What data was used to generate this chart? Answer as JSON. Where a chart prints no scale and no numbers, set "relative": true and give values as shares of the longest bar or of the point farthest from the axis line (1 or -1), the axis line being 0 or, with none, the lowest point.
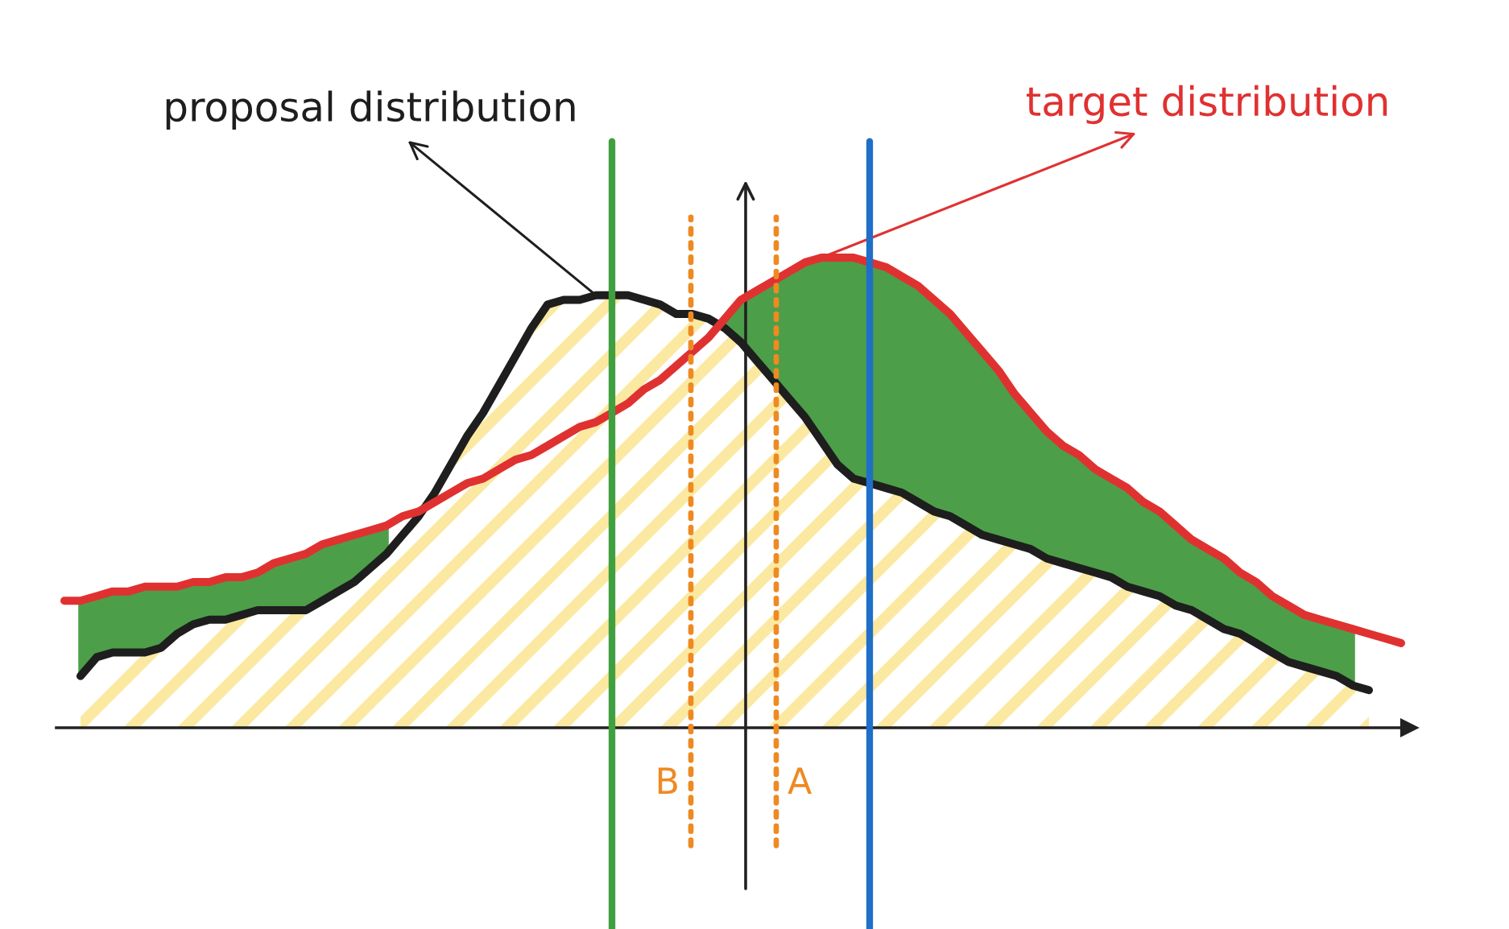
{
  "chart_data": {
    "type": "line",
    "relative": true,
    "categories": [
      null,
      null,
      null,
      null,
      null,
      null,
      null,
      null,
      null,
      null,
      null,
      null,
      null,
      null,
      null,
      null,
      null,
      null,
      null,
      null,
      null,
      null,
      null,
      null,
      null,
      null,
      null,
      null,
      null,
      null,
      null,
      null,
      null,
      null,
      null,
      null,
      null,
      null,
      null,
      null,
      null,
      null,
      null,
      null,
      null,
      null,
      null,
      null,
      null,
      null,
      null,
      null,
      null,
      null,
      null,
      null,
      null,
      null,
      null,
      null,
      null,
      null,
      null,
      null,
      null,
      null,
      null,
      null,
      null,
      null,
      null,
      null,
      null,
      null,
      null,
      null,
      null,
      null,
      null,
      null,
      null,
      null,
      null,
      null
    ],
    "series": [
      {
        "name": "proposal distribution",
        "type": "area",
        "color": "#1e1e1e",
        "values": [
          null,
          0.11,
          0.15,
          0.16,
          0.16,
          0.16,
          0.17,
          0.2,
          0.22,
          0.23,
          0.23,
          0.24,
          0.25,
          0.25,
          0.25,
          0.25,
          0.27,
          0.29,
          0.31,
          0.34,
          0.37,
          0.41,
          0.45,
          0.5,
          0.56,
          0.62,
          0.67,
          0.73,
          0.79,
          0.85,
          0.9,
          0.91,
          0.91,
          0.92,
          0.92,
          0.92,
          0.91,
          0.9,
          0.88,
          0.88,
          0.87,
          0.85,
          0.82,
          0.78,
          0.74,
          0.7,
          0.66,
          0.61,
          0.56,
          0.53,
          0.52,
          0.51,
          0.5,
          0.48,
          0.46,
          0.45,
          0.43,
          0.41,
          0.4,
          0.39,
          0.38,
          0.36,
          0.35,
          0.34,
          0.33,
          0.32,
          0.3,
          0.29,
          0.28,
          0.26,
          0.25,
          0.23,
          0.21,
          0.2,
          0.18,
          0.16,
          0.14,
          0.13,
          0.12,
          0.11,
          0.09,
          0.08,
          null,
          null
        ]
      },
      {
        "name": "target distribution",
        "color": "#e03131",
        "values": [
          0.27,
          0.27,
          0.28,
          0.29,
          0.29,
          0.3,
          0.3,
          0.3,
          0.31,
          0.31,
          0.32,
          0.32,
          0.33,
          0.35,
          0.36,
          0.37,
          0.39,
          0.4,
          0.41,
          0.42,
          0.43,
          0.45,
          0.46,
          0.48,
          0.5,
          0.52,
          0.53,
          0.55,
          0.57,
          0.58,
          0.6,
          0.62,
          0.64,
          0.65,
          0.67,
          0.69,
          0.72,
          0.74,
          0.77,
          0.8,
          0.83,
          0.87,
          0.91,
          0.93,
          0.95,
          0.97,
          0.99,
          1.0,
          1.0,
          1.0,
          0.99,
          0.98,
          0.96,
          0.94,
          0.91,
          0.88,
          0.84,
          0.8,
          0.76,
          0.71,
          0.67,
          0.63,
          0.6,
          0.58,
          0.55,
          0.53,
          0.51,
          0.48,
          0.46,
          0.43,
          0.4,
          0.38,
          0.36,
          0.33,
          0.31,
          0.28,
          0.26,
          0.24,
          0.23,
          0.22,
          0.21,
          0.2,
          0.19,
          0.18
        ],
        "lower": [
          null,
          0.11,
          0.15,
          0.16,
          0.16,
          0.16,
          0.17,
          0.2,
          0.22,
          0.23,
          0.23,
          0.24,
          0.25,
          0.25,
          0.25,
          0.25,
          0.27,
          0.29,
          0.31,
          0.34,
          0.37,
          null,
          null,
          null,
          null,
          null,
          null,
          null,
          null,
          null,
          null,
          null,
          null,
          null,
          null,
          null,
          null,
          null,
          null,
          null,
          null,
          0.85,
          0.82,
          0.78,
          0.74,
          0.7,
          0.66,
          0.61,
          0.56,
          0.53,
          0.52,
          0.51,
          0.5,
          0.48,
          0.46,
          0.45,
          0.43,
          0.41,
          0.4,
          0.39,
          0.38,
          0.36,
          0.35,
          0.34,
          0.33,
          0.32,
          0.3,
          0.29,
          0.28,
          0.26,
          0.25,
          0.23,
          0.21,
          0.2,
          0.18,
          0.16,
          0.14,
          0.13,
          0.12,
          0.11,
          0.09,
          null,
          null,
          null
        ],
        "upper": [
          null,
          0.27,
          0.28,
          0.29,
          0.29,
          0.3,
          0.3,
          0.3,
          0.31,
          0.31,
          0.32,
          0.32,
          0.33,
          0.35,
          0.36,
          0.37,
          0.39,
          0.4,
          0.41,
          0.42,
          0.43,
          null,
          null,
          null,
          null,
          null,
          null,
          null,
          null,
          null,
          null,
          null,
          null,
          null,
          null,
          null,
          null,
          null,
          null,
          null,
          null,
          0.87,
          0.91,
          0.93,
          0.95,
          0.97,
          0.99,
          1.0,
          1.0,
          1.0,
          0.99,
          0.98,
          0.96,
          0.94,
          0.91,
          0.88,
          0.84,
          0.8,
          0.76,
          0.71,
          0.67,
          0.63,
          0.6,
          0.58,
          0.55,
          0.53,
          0.51,
          0.48,
          0.46,
          0.43,
          0.4,
          0.38,
          0.36,
          0.33,
          0.31,
          0.28,
          0.26,
          0.24,
          0.23,
          0.22,
          0.21,
          null,
          null,
          null
        ]
      }
    ],
    "annotations": [
      "B",
      "A"
    ]
  }
}
